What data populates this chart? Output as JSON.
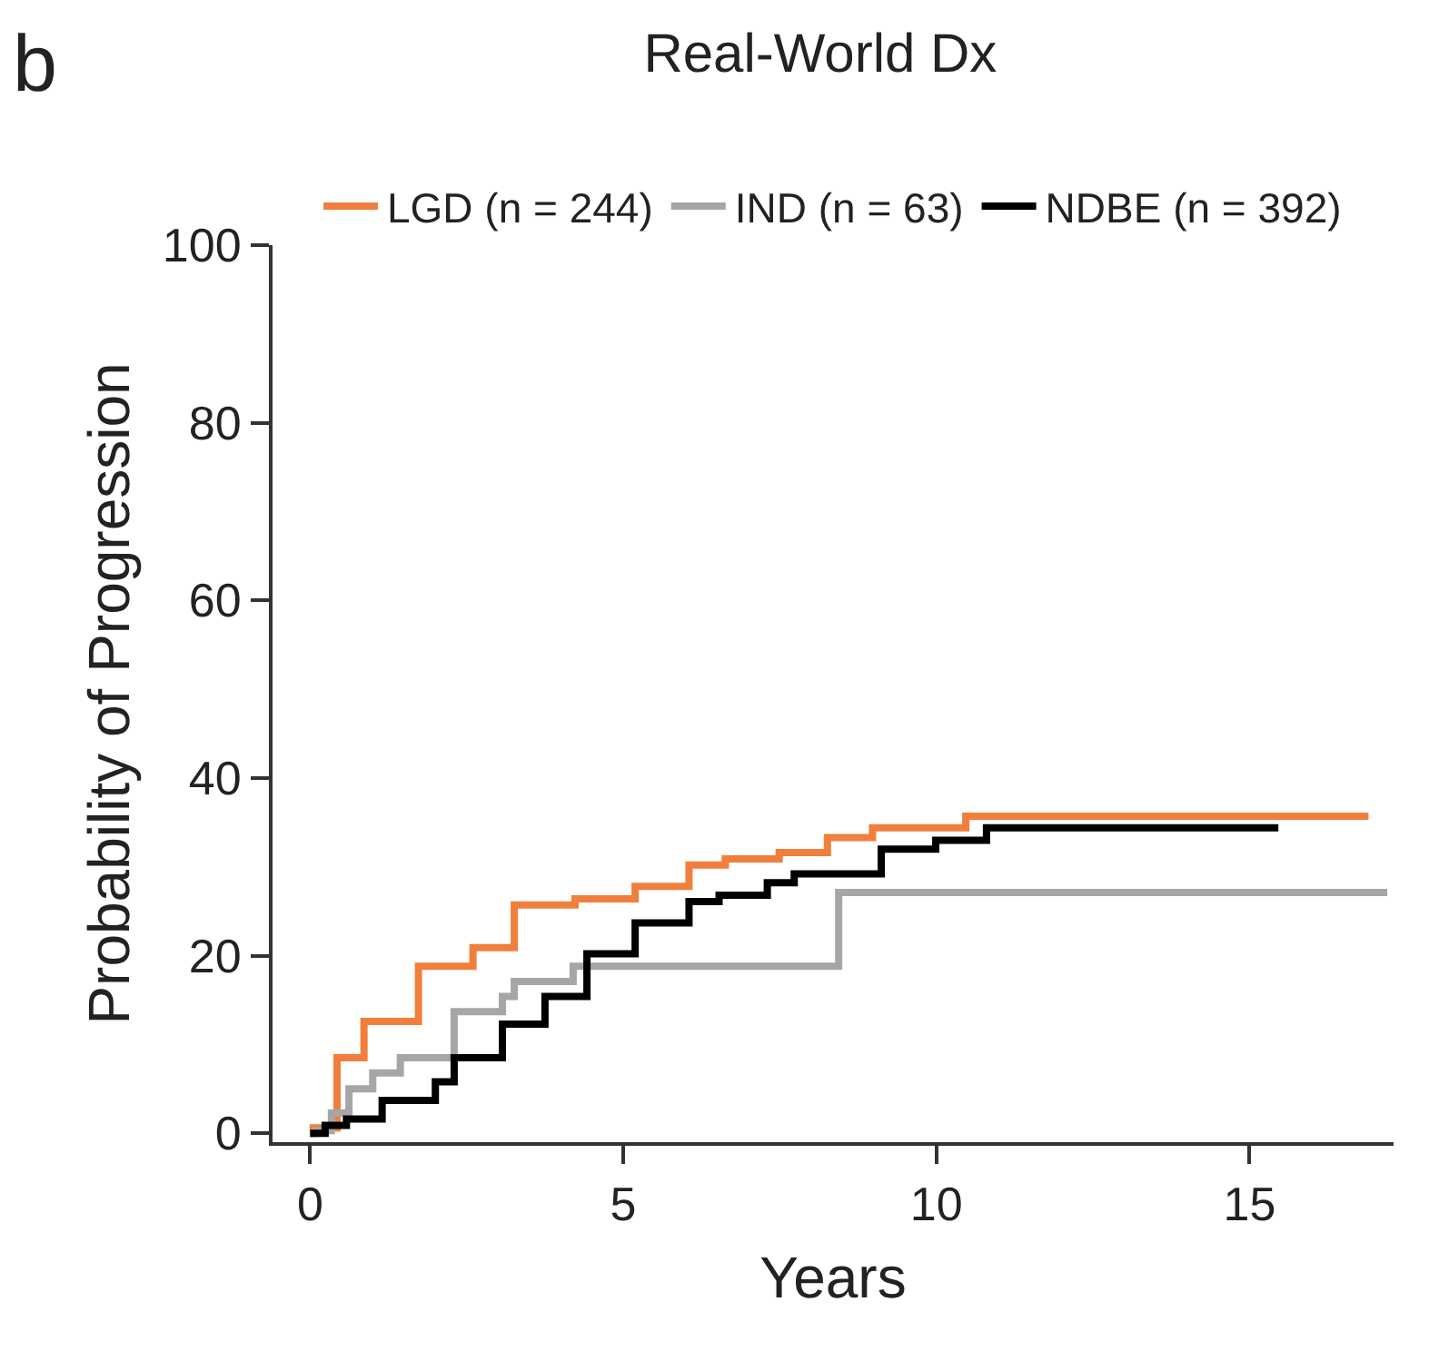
{
  "chart_data": {
    "type": "step",
    "title": "Real-World Dx",
    "xlabel": "Years",
    "ylabel": "Probability of Progression",
    "annotations": [
      "b"
    ],
    "xlim": [
      -0.6,
      17.3
    ],
    "xticks": [
      0,
      5,
      10,
      15
    ],
    "ylim": [
      -1,
      100
    ],
    "yticks": [
      0,
      20,
      40,
      60,
      80,
      100
    ],
    "legend": "top",
    "marker": "none",
    "line_style": "solid",
    "series": [
      {
        "name": "LGD (n = 244)",
        "color": "#f07f3c",
        "x": [
          0,
          0.05,
          0.43,
          0.86,
          1.73,
          2.6,
          3.26,
          4.23,
          5.19,
          6.05,
          6.63,
          7.49,
          8.26,
          8.98,
          10.47,
          16.9
        ],
        "values": [
          0,
          0.6,
          8.5,
          12.6,
          18.8,
          20.9,
          25.7,
          26.4,
          27.8,
          30.2,
          30.9,
          31.6,
          33.3,
          34.4,
          35.7,
          35.7
        ]
      },
      {
        "name": "IND (n = 63)",
        "color": "#a6a6a6",
        "x": [
          0,
          0.1,
          0.34,
          0.62,
          1.0,
          1.44,
          2.3,
          3.07,
          3.26,
          4.2,
          8.44,
          17.2
        ],
        "values": [
          0,
          0.3,
          2.3,
          5.0,
          6.8,
          8.5,
          13.7,
          15.4,
          17.1,
          18.8,
          27.1,
          27.1
        ]
      },
      {
        "name": "NDBE (n = 392)",
        "color": "#000000",
        "x": [
          0,
          0.24,
          0.58,
          1.15,
          2.0,
          2.3,
          3.07,
          3.75,
          4.42,
          5.19,
          6.05,
          6.53,
          7.3,
          7.73,
          9.12,
          9.99,
          10.8,
          15.46
        ],
        "values": [
          0,
          0.9,
          1.6,
          3.7,
          5.8,
          8.5,
          12.3,
          15.4,
          20.2,
          23.7,
          26.1,
          26.8,
          28.2,
          29.2,
          32.0,
          33.0,
          34.4,
          34.4
        ]
      }
    ]
  }
}
